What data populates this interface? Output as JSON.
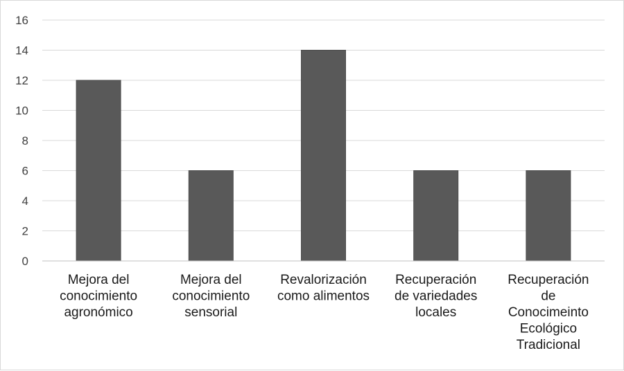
{
  "chart_data": {
    "type": "bar",
    "categories": [
      [
        "Mejora del",
        "conocimiento",
        "agronómico"
      ],
      [
        "Mejora del",
        "conocimiento",
        "sensorial"
      ],
      [
        "Revalorización",
        "como alimentos"
      ],
      [
        "Recuperación",
        "de variedades",
        "locales"
      ],
      [
        "Recuperación",
        "de",
        "Conocimeinto",
        "Ecológico",
        "Tradicional"
      ]
    ],
    "values": [
      12,
      6,
      14,
      6,
      6
    ],
    "ylim": [
      0,
      16
    ],
    "yticks": [
      "0",
      "2",
      "4",
      "6",
      "8",
      "10",
      "12",
      "14",
      "16"
    ],
    "title": "",
    "xlabel": "",
    "ylabel": "",
    "grid": true,
    "bar_color": "#595959",
    "grid_color": "#d9d9d9",
    "axis_color": "#bfbfbf"
  }
}
